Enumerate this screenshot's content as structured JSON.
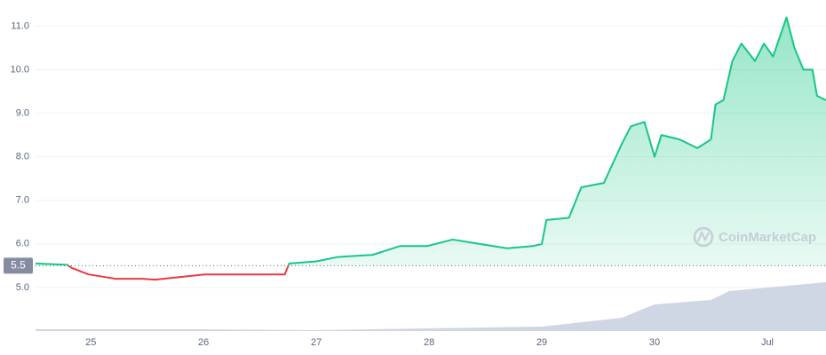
{
  "chart_data": {
    "type": "line",
    "color": "#16c784",
    "down_color": "#ea3943",
    "x": [
      -0.49,
      -0.21,
      -0.17,
      -0.02,
      0.22,
      0.46,
      0.57,
      1.01,
      1.24,
      1.56,
      1.72,
      1.76,
      2.0,
      2.19,
      2.5,
      2.74,
      2.98,
      3.21,
      3.45,
      3.69,
      3.92,
      4.0,
      4.04,
      4.24,
      4.35,
      4.55,
      4.71,
      4.79,
      4.91,
      5.0,
      5.06,
      5.22,
      5.38,
      5.5,
      5.54,
      5.61,
      5.69,
      5.77,
      5.89,
      5.97,
      6.05,
      6.13,
      6.17,
      6.24,
      6.32,
      6.4,
      6.44,
      6.52
    ],
    "values": [
      5.55,
      5.52,
      5.45,
      5.3,
      5.2,
      5.2,
      5.18,
      5.3,
      5.3,
      5.3,
      5.3,
      5.55,
      5.6,
      5.7,
      5.75,
      5.95,
      5.95,
      6.1,
      6.0,
      5.9,
      5.95,
      6.0,
      6.55,
      6.6,
      7.3,
      7.4,
      8.3,
      8.7,
      8.8,
      8.0,
      8.5,
      8.4,
      8.2,
      8.4,
      9.2,
      9.3,
      10.2,
      10.6,
      10.2,
      10.6,
      10.3,
      10.9,
      11.2,
      10.5,
      10.0,
      10.0,
      9.4,
      9.3
    ],
    "xlim": [
      -0.49,
      6.52
    ],
    "xticks": [
      {
        "value": 0,
        "label": "25"
      },
      {
        "value": 1,
        "label": "26"
      },
      {
        "value": 2,
        "label": "27"
      },
      {
        "value": 3,
        "label": "28"
      },
      {
        "value": 4,
        "label": "29"
      },
      {
        "value": 5,
        "label": "30"
      },
      {
        "value": 6,
        "label": "Jul"
      }
    ],
    "ylim": [
      4,
      11.6
    ],
    "yticks": [
      {
        "value": 5,
        "label": "5.0"
      },
      {
        "value": 6,
        "label": "6.0"
      },
      {
        "value": 7,
        "label": "7.0"
      },
      {
        "value": 8,
        "label": "8.0"
      },
      {
        "value": 9,
        "label": "9.0"
      },
      {
        "value": 10,
        "label": "10.0"
      },
      {
        "value": 11,
        "label": "11.0"
      }
    ],
    "grid": true,
    "baseline": {
      "value": 5.5,
      "label": "5.5"
    },
    "volume": {
      "color": "#cfd6e4",
      "x": [
        -0.49,
        1.0,
        1.99,
        2.98,
        4.0,
        4.71,
        5.0,
        5.5,
        5.66,
        6.52
      ],
      "values": [
        2,
        2,
        1,
        3,
        5,
        15,
        30,
        35,
        45,
        55
      ],
      "ylim": [
        0,
        373
      ]
    },
    "watermark": "CoinMarketCap"
  }
}
